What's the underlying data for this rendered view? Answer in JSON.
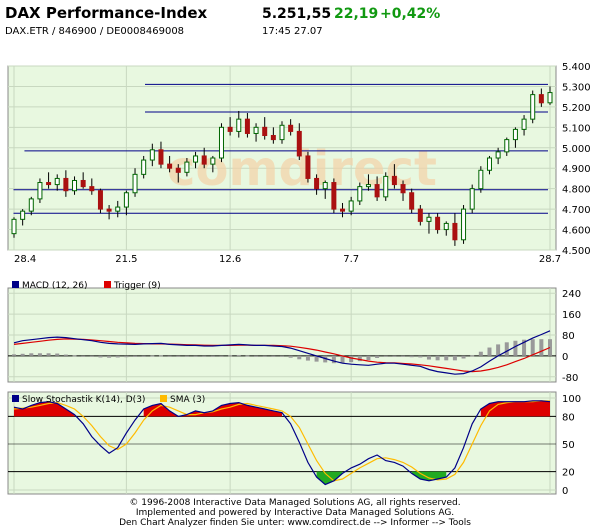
{
  "header": {
    "title": "DAX Performance-Index",
    "subtitle": "DAX.ETR  /  846900  /  DE0008469008",
    "price": "5.251,55",
    "change": "22,19",
    "change_pct": "+0,42%",
    "time": "17:45   27.07"
  },
  "watermark": "comdirect",
  "colors": {
    "panel_bg": "#e8f8e0",
    "up_candle": "#ffffff",
    "down_candle": "#aa1111",
    "hline": "#000088",
    "macd": "#000088",
    "trigger": "#dd0000",
    "k_line": "#000088",
    "d_line": "#ffbb00",
    "overbought_fill": "#dd0000",
    "oversold_fill": "#22aa22"
  },
  "footer": {
    "line1": "© 1996-2008 Interactive Data Managed Solutions AG, all rights reserved.",
    "line2": "Implemented and powered by Interactive Data Managed Solutions AG.",
    "line3": "Den Chart Analyzer finden Sie unter: www.comdirect.de --> Informer --> Tools"
  },
  "chart_data": [
    {
      "type": "candlestick",
      "y_ticks": [
        "5.400",
        "5.300",
        "5.200",
        "5.100",
        "5.000",
        "4.900",
        "4.800",
        "4.700",
        "4.600",
        "4.500"
      ],
      "ylim": [
        4500,
        5400
      ],
      "x_ticks": [
        "28.4",
        "21.5",
        "12.6",
        "7.7",
        "28.7"
      ],
      "horizontal_levels": [
        5310,
        5175,
        4985,
        4795,
        4680
      ],
      "candles": [
        [
          4580,
          4660,
          4560,
          4650
        ],
        [
          4650,
          4700,
          4620,
          4690
        ],
        [
          4690,
          4760,
          4670,
          4750
        ],
        [
          4750,
          4850,
          4730,
          4830
        ],
        [
          4830,
          4880,
          4800,
          4820
        ],
        [
          4820,
          4870,
          4790,
          4850
        ],
        [
          4850,
          4890,
          4760,
          4790
        ],
        [
          4790,
          4860,
          4770,
          4840
        ],
        [
          4840,
          4880,
          4800,
          4810
        ],
        [
          4810,
          4850,
          4770,
          4790
        ],
        [
          4790,
          4800,
          4680,
          4700
        ],
        [
          4700,
          4720,
          4650,
          4690
        ],
        [
          4690,
          4740,
          4660,
          4710
        ],
        [
          4710,
          4790,
          4670,
          4780
        ],
        [
          4780,
          4900,
          4760,
          4870
        ],
        [
          4870,
          4960,
          4850,
          4940
        ],
        [
          4940,
          5020,
          4910,
          4990
        ],
        [
          4990,
          5030,
          4900,
          4920
        ],
        [
          4920,
          4960,
          4880,
          4900
        ],
        [
          4900,
          4920,
          4830,
          4880
        ],
        [
          4880,
          4950,
          4860,
          4930
        ],
        [
          4930,
          4980,
          4900,
          4960
        ],
        [
          4960,
          5000,
          4900,
          4920
        ],
        [
          4920,
          4960,
          4880,
          4950
        ],
        [
          4950,
          5120,
          4930,
          5100
        ],
        [
          5100,
          5150,
          5060,
          5080
        ],
        [
          5080,
          5180,
          5050,
          5140
        ],
        [
          5140,
          5170,
          5050,
          5070
        ],
        [
          5070,
          5120,
          5030,
          5100
        ],
        [
          5100,
          5150,
          5040,
          5060
        ],
        [
          5060,
          5100,
          5020,
          5040
        ],
        [
          5040,
          5130,
          5020,
          5110
        ],
        [
          5110,
          5140,
          5060,
          5080
        ],
        [
          5080,
          5120,
          4940,
          4960
        ],
        [
          4960,
          4980,
          4830,
          4850
        ],
        [
          4850,
          4870,
          4770,
          4800
        ],
        [
          4800,
          4840,
          4750,
          4830
        ],
        [
          4830,
          4850,
          4680,
          4700
        ],
        [
          4700,
          4730,
          4660,
          4690
        ],
        [
          4690,
          4760,
          4670,
          4740
        ],
        [
          4740,
          4830,
          4720,
          4810
        ],
        [
          4810,
          4870,
          4790,
          4820
        ],
        [
          4820,
          4860,
          4740,
          4760
        ],
        [
          4760,
          4880,
          4740,
          4860
        ],
        [
          4860,
          4920,
          4800,
          4820
        ],
        [
          4820,
          4840,
          4740,
          4780
        ],
        [
          4780,
          4800,
          4680,
          4700
        ],
        [
          4700,
          4720,
          4620,
          4640
        ],
        [
          4640,
          4680,
          4580,
          4660
        ],
        [
          4660,
          4680,
          4580,
          4600
        ],
        [
          4600,
          4640,
          4570,
          4630
        ],
        [
          4630,
          4680,
          4520,
          4550
        ],
        [
          4550,
          4720,
          4530,
          4700
        ],
        [
          4700,
          4820,
          4680,
          4800
        ],
        [
          4800,
          4910,
          4780,
          4890
        ],
        [
          4890,
          4960,
          4870,
          4950
        ],
        [
          4950,
          5000,
          4920,
          4980
        ],
        [
          4980,
          5050,
          4960,
          5040
        ],
        [
          5040,
          5100,
          5000,
          5090
        ],
        [
          5090,
          5160,
          5060,
          5140
        ],
        [
          5140,
          5280,
          5120,
          5260
        ],
        [
          5260,
          5290,
          5200,
          5220
        ],
        [
          5220,
          5300,
          5210,
          5270
        ]
      ]
    },
    {
      "type": "line",
      "legend": [
        {
          "name": "MACD (12, 26)"
        },
        {
          "name": "Trigger (9)"
        }
      ],
      "y_ticks": [
        "240",
        "160",
        "80",
        "0",
        "-80"
      ],
      "ylim": [
        -100,
        260
      ],
      "macd": [
        50,
        58,
        62,
        66,
        70,
        72,
        70,
        66,
        62,
        58,
        52,
        48,
        46,
        45,
        44,
        46,
        47,
        48,
        44,
        42,
        40,
        40,
        38,
        38,
        40,
        42,
        44,
        42,
        40,
        40,
        38,
        36,
        30,
        20,
        10,
        0,
        -10,
        -20,
        -28,
        -32,
        -34,
        -36,
        -32,
        -28,
        -28,
        -32,
        -36,
        -40,
        -52,
        -60,
        -65,
        -70,
        -68,
        -58,
        -42,
        -20,
        0,
        18,
        36,
        52,
        68,
        82,
        96
      ],
      "trigger": [
        44,
        48,
        52,
        56,
        60,
        63,
        65,
        64,
        63,
        61,
        58,
        55,
        52,
        50,
        48,
        47,
        46,
        46,
        45,
        44,
        43,
        42,
        41,
        40,
        40,
        40,
        41,
        41,
        40,
        40,
        40,
        39,
        37,
        33,
        28,
        22,
        15,
        8,
        0,
        -8,
        -14,
        -20,
        -24,
        -26,
        -27,
        -29,
        -31,
        -34,
        -38,
        -43,
        -48,
        -53,
        -58,
        -60,
        -58,
        -52,
        -44,
        -34,
        -22,
        -10,
        4,
        18,
        32
      ],
      "histogram": [
        6,
        8,
        10,
        10,
        10,
        9,
        5,
        2,
        -1,
        -3,
        -6,
        -7,
        -6,
        -5,
        -4,
        -1,
        1,
        2,
        -1,
        -2,
        -3,
        -2,
        -3,
        -2,
        0,
        2,
        3,
        1,
        0,
        0,
        -2,
        -3,
        -7,
        -13,
        -18,
        -22,
        -25,
        -28,
        -28,
        -24,
        -20,
        -16,
        -8,
        -2,
        -1,
        -3,
        -5,
        -6,
        -14,
        -17,
        -17,
        -17,
        -10,
        2,
        16,
        32,
        44,
        52,
        58,
        62,
        64,
        64,
        64
      ]
    },
    {
      "type": "line",
      "legend": [
        {
          "name": "Slow Stochastik K(14), D(3)"
        },
        {
          "name": "SMA (3)"
        }
      ],
      "y_ticks": [
        "100",
        "80",
        "50",
        "20",
        "0"
      ],
      "ylim": [
        0,
        100
      ],
      "k": [
        90,
        88,
        92,
        95,
        96,
        94,
        88,
        82,
        72,
        58,
        48,
        40,
        46,
        62,
        76,
        88,
        92,
        94,
        86,
        80,
        82,
        86,
        84,
        86,
        92,
        94,
        95,
        92,
        90,
        88,
        86,
        84,
        72,
        52,
        30,
        14,
        6,
        10,
        18,
        24,
        28,
        34,
        38,
        32,
        30,
        26,
        18,
        12,
        10,
        12,
        14,
        24,
        46,
        72,
        88,
        94,
        96,
        96,
        96,
        96,
        97,
        97,
        96
      ],
      "d": [
        88,
        89,
        90,
        92,
        94,
        95,
        92,
        88,
        80,
        70,
        58,
        48,
        44,
        50,
        62,
        76,
        86,
        92,
        90,
        86,
        82,
        82,
        84,
        85,
        88,
        90,
        93,
        94,
        92,
        90,
        88,
        86,
        80,
        68,
        50,
        32,
        18,
        10,
        12,
        18,
        24,
        29,
        34,
        35,
        33,
        30,
        25,
        18,
        13,
        11,
        12,
        17,
        30,
        50,
        70,
        86,
        93,
        95,
        96,
        96,
        96,
        97,
        97
      ]
    }
  ]
}
